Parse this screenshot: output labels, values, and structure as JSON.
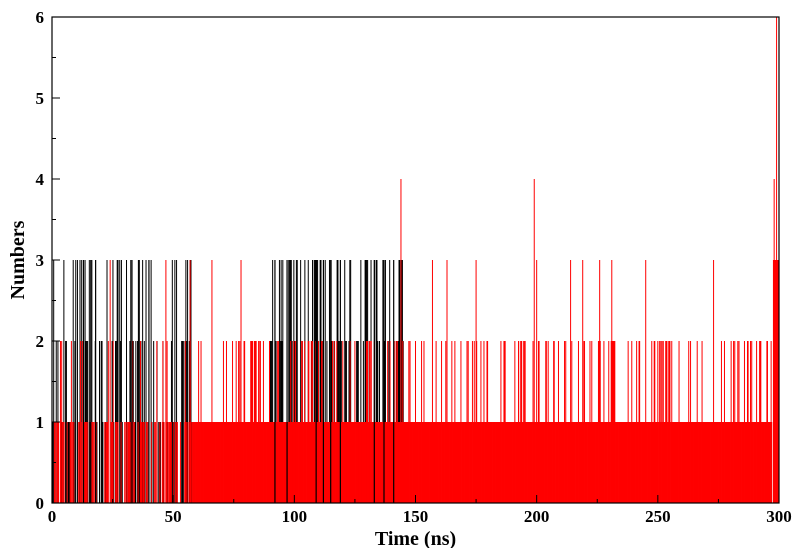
{
  "chart_data": {
    "type": "bar",
    "title": "",
    "xlabel": "Time (ns)",
    "ylabel": "Numbers",
    "xlim": [
      0,
      300
    ],
    "ylim": [
      0,
      6
    ],
    "x_ticks": [
      0,
      50,
      100,
      150,
      200,
      250,
      300
    ],
    "y_ticks": [
      0,
      1,
      2,
      3,
      4,
      5,
      6
    ],
    "grid": false,
    "legend": "none",
    "colors": {
      "black": "#000000",
      "red": "#ff0000"
    },
    "series": [
      {
        "color": "#000000",
        "segments": [
          {
            "x": [
              0,
              22
            ],
            "ylevels": [
              2,
              3,
              1
            ]
          },
          {
            "x": [
              22,
              58
            ],
            "ylevels": [
              1,
              2,
              3
            ]
          },
          {
            "x": [
              90,
              145
            ],
            "ylevels": [
              2,
              3
            ]
          }
        ],
        "spikes": [
          {
            "x": 13,
            "y": 3
          },
          {
            "x": 16,
            "y": 3
          },
          {
            "x": 18,
            "y": 3
          },
          {
            "x": 33,
            "y": 3
          },
          {
            "x": 36,
            "y": 3
          },
          {
            "x": 40,
            "y": 3
          },
          {
            "x": 92,
            "y": 3
          },
          {
            "x": 97,
            "y": 3
          },
          {
            "x": 109,
            "y": 3
          },
          {
            "x": 112,
            "y": 3
          },
          {
            "x": 115,
            "y": 3
          },
          {
            "x": 119,
            "y": 3
          },
          {
            "x": 133,
            "y": 3
          },
          {
            "x": 137,
            "y": 3
          },
          {
            "x": 141,
            "y": 3
          }
        ]
      },
      {
        "color": "#ff0000",
        "baseline_level": 1,
        "baseline_x": [
          0,
          297
        ],
        "spikes": [
          {
            "x": 24,
            "y": 3
          },
          {
            "x": 47,
            "y": 3
          },
          {
            "x": 57,
            "y": 3
          },
          {
            "x": 66,
            "y": 3
          },
          {
            "x": 78,
            "y": 3
          },
          {
            "x": 144,
            "y": 4
          },
          {
            "x": 157,
            "y": 3
          },
          {
            "x": 163,
            "y": 3
          },
          {
            "x": 175,
            "y": 3
          },
          {
            "x": 199,
            "y": 4
          },
          {
            "x": 200,
            "y": 3
          },
          {
            "x": 214,
            "y": 3
          },
          {
            "x": 219,
            "y": 3
          },
          {
            "x": 226,
            "y": 3
          },
          {
            "x": 231,
            "y": 3
          },
          {
            "x": 245,
            "y": 3
          },
          {
            "x": 273,
            "y": 3
          },
          {
            "x": 298,
            "y": 4
          },
          {
            "x": 299,
            "y": 6
          }
        ]
      }
    ]
  }
}
